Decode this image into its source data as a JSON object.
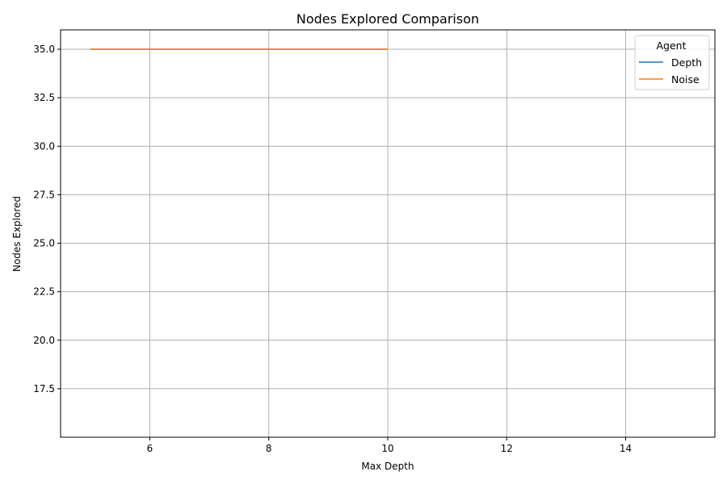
{
  "chart_data": {
    "type": "line",
    "title": "Nodes Explored Comparison",
    "xlabel": "Max Depth",
    "ylabel": "Nodes Explored",
    "xlim": [
      4.5,
      15.5
    ],
    "ylim": [
      15.0,
      36.0
    ],
    "xticks": [
      6,
      8,
      10,
      12,
      14
    ],
    "xtick_labels": [
      "6",
      "8",
      "10",
      "12",
      "14"
    ],
    "yticks": [
      17.5,
      20.0,
      22.5,
      25.0,
      27.5,
      30.0,
      32.5,
      35.0
    ],
    "ytick_labels": [
      "17.5",
      "20.0",
      "22.5",
      "25.0",
      "27.5",
      "30.0",
      "32.5",
      "35.0"
    ],
    "grid": true,
    "legend_title": "Agent",
    "legend_position": "top-right",
    "series": [
      {
        "name": "Depth",
        "color": "#1f77b4",
        "x": [
          5,
          6,
          7,
          8,
          9,
          10
        ],
        "y": [
          35,
          35,
          35,
          35,
          35,
          35
        ]
      },
      {
        "name": "Noise",
        "color": "#ff7f0e",
        "x": [
          5,
          6,
          7,
          8,
          9,
          10
        ],
        "y": [
          35,
          35,
          35,
          35,
          35,
          35
        ]
      }
    ]
  }
}
